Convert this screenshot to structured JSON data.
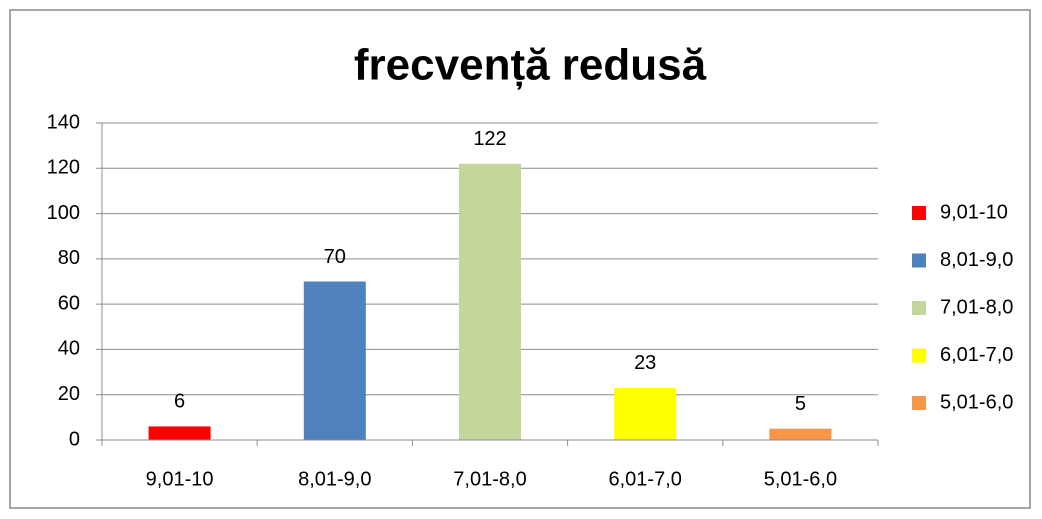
{
  "chart_data": {
    "type": "bar",
    "title": "frecvență redusă",
    "categories": [
      "9,01-10",
      "8,01-9,0",
      "7,01-8,0",
      "6,01-7,0",
      "5,01-6,0"
    ],
    "values": [
      6,
      70,
      122,
      23,
      5
    ],
    "colors": [
      "#ff0000",
      "#4f81bd",
      "#c3d69b",
      "#ffff00",
      "#f79646"
    ],
    "ylim": [
      0,
      140
    ],
    "yticks": [
      0,
      20,
      40,
      60,
      80,
      100,
      120,
      140
    ],
    "grid": true,
    "legend": "right"
  }
}
